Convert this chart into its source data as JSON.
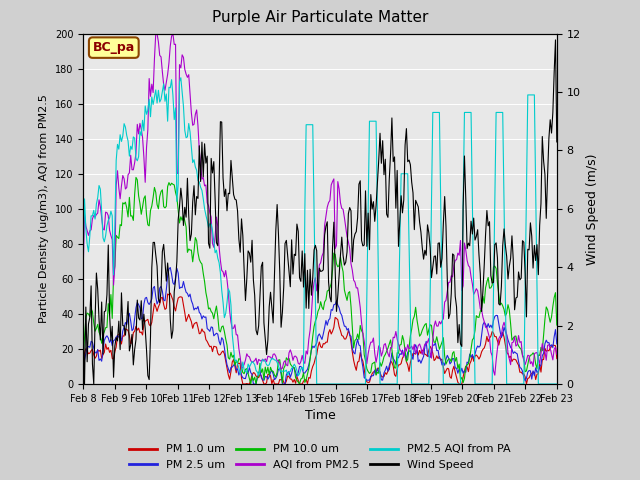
{
  "title": "Purple Air Particulate Matter",
  "xlabel": "Time",
  "ylabel_left": "Particle Density (ug/m3), AQI from PM2.5",
  "ylabel_right": "Wind Speed (m/s)",
  "annotation": "BC_pa",
  "ylim_left": [
    0,
    200
  ],
  "ylim_right": [
    0,
    12
  ],
  "legend_colors": {
    "pm1": "#cc0000",
    "pm25": "#2222dd",
    "pm10": "#00bb00",
    "aqi_pm25": "#aa00cc",
    "aqi_pa": "#00cccc",
    "wind": "#000000"
  },
  "legend_labels": [
    "PM 1.0 um",
    "PM 2.5 um",
    "PM 10.0 um",
    "AQI from PM2.5",
    "PM2.5 AQI from PA",
    "Wind Speed"
  ],
  "xtick_labels": [
    "Feb 8",
    "Feb 9",
    "Feb 10",
    "Feb 11",
    "Feb 12",
    "Feb 13",
    "Feb 14",
    "Feb 15",
    "Feb 16",
    "Feb 17",
    "Feb 18",
    "Feb 19",
    "Feb 20",
    "Feb 21",
    "Feb 22",
    "Feb 23"
  ],
  "n_days": 15,
  "pts_per_day": 24,
  "yticks_right": [
    0,
    2,
    4,
    6,
    8,
    10,
    12
  ],
  "yticks_left": [
    0,
    20,
    40,
    60,
    80,
    100,
    120,
    140,
    160,
    180,
    200
  ]
}
